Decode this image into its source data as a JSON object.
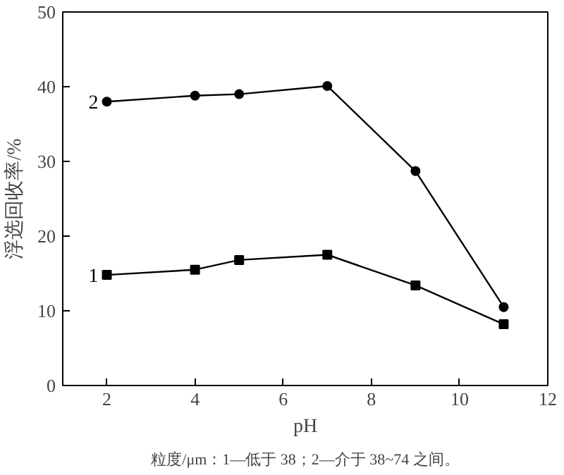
{
  "chart_data": {
    "type": "line",
    "xlabel": "pH",
    "ylabel": "浮选回收率/%",
    "x": [
      2,
      4,
      5,
      7,
      9,
      11
    ],
    "series": [
      {
        "name": "1",
        "color": "#000000",
        "marker": "square",
        "values": [
          14.8,
          15.5,
          16.8,
          17.5,
          13.4,
          8.2
        ]
      },
      {
        "name": "2",
        "color": "#000000",
        "marker": "circle",
        "values": [
          38,
          38.8,
          39,
          40.1,
          28.7,
          10.5
        ]
      }
    ],
    "xlim": [
      1,
      12
    ],
    "xticks": [
      2,
      4,
      6,
      8,
      10,
      12
    ],
    "ylim": [
      0,
      50
    ],
    "yticks": [
      0,
      10,
      20,
      30,
      40,
      50
    ],
    "grid": false,
    "annotations": [
      "粒度/μm：1—低于 38；2—介于 38~74 之间。"
    ]
  }
}
